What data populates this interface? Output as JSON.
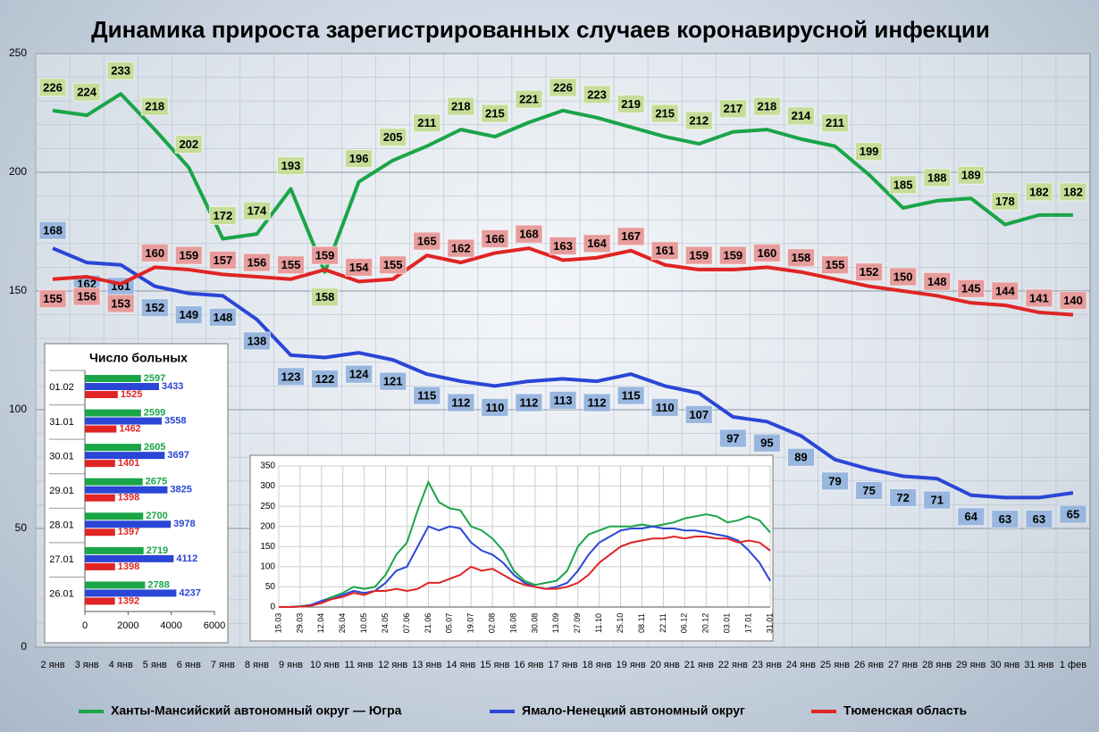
{
  "chart_data": [
    {
      "type": "line",
      "title": "Динамика прироста зарегистрированных случаев коронавирусной инфекции",
      "categories": [
        "2 янв",
        "3 янв",
        "4 янв",
        "5 янв",
        "6 янв",
        "7 янв",
        "8 янв",
        "9 янв",
        "10 янв",
        "11 янв",
        "12 янв",
        "13 янв",
        "14 янв",
        "15 янв",
        "16 янв",
        "17 янв",
        "18 янв",
        "19 янв",
        "20 янв",
        "21 янв",
        "22 янв",
        "23 янв",
        "24 янв",
        "25 янв",
        "26 янв",
        "27 янв",
        "28 янв",
        "29 янв",
        "30 янв",
        "31 янв",
        "1 фев"
      ],
      "ylim": [
        0,
        250
      ],
      "yticks": [
        0,
        50,
        100,
        150,
        200,
        250
      ],
      "grid": true,
      "series": [
        {
          "name": "Ханты-Мансийский автономный округ — Югра",
          "color": "#1aa548",
          "values": [
            226,
            224,
            233,
            218,
            202,
            172,
            174,
            193,
            158,
            196,
            205,
            211,
            218,
            215,
            221,
            226,
            223,
            219,
            215,
            212,
            217,
            218,
            214,
            211,
            199,
            185,
            188,
            189,
            178,
            182,
            182
          ]
        },
        {
          "name": "Ямало-Ненецкий автономный округ",
          "color": "#2a46d6",
          "values": [
            168,
            162,
            161,
            152,
            149,
            148,
            138,
            123,
            122,
            124,
            121,
            115,
            112,
            110,
            112,
            113,
            112,
            115,
            110,
            107,
            97,
            95,
            89,
            79,
            75,
            72,
            71,
            64,
            63,
            63,
            65
          ]
        },
        {
          "name": "Тюменская область",
          "color": "#e02424",
          "values": [
            155,
            156,
            153,
            160,
            159,
            157,
            156,
            155,
            159,
            154,
            155,
            165,
            162,
            166,
            168,
            163,
            164,
            167,
            161,
            159,
            159,
            160,
            158,
            155,
            152,
            150,
            148,
            145,
            144,
            141,
            140
          ]
        }
      ]
    },
    {
      "type": "hbar",
      "title": "Число больных",
      "categories": [
        "01.02",
        "31.01",
        "30.01",
        "29.01",
        "28.01",
        "27.01",
        "26.01"
      ],
      "xlim": [
        0,
        6000
      ],
      "xticks": [
        0,
        2000,
        4000,
        6000
      ],
      "series": [
        {
          "color": "#1aa548",
          "values": [
            2597,
            2599,
            2605,
            2675,
            2700,
            2719,
            2788
          ]
        },
        {
          "color": "#2a46d6",
          "values": [
            3433,
            3558,
            3697,
            3825,
            3978,
            4112,
            4237
          ]
        },
        {
          "color": "#e02424",
          "values": [
            1525,
            1462,
            1401,
            1398,
            1397,
            1398,
            1392
          ]
        }
      ]
    },
    {
      "type": "line",
      "categories": [
        "15.03",
        null,
        "29.03",
        null,
        "12.04",
        null,
        "26.04",
        null,
        "10.05",
        null,
        "24.05",
        null,
        "07.06",
        null,
        "21.06",
        null,
        "05.07",
        null,
        "19.07",
        null,
        "02.08",
        null,
        "16.08",
        null,
        "30.08",
        null,
        "13.09",
        null,
        "27.09",
        null,
        "11.10",
        null,
        "25.10",
        null,
        "08.11",
        null,
        "22.11",
        null,
        "06.12",
        null,
        "20.12",
        null,
        "03.01",
        null,
        "17.01",
        null,
        "31.01"
      ],
      "ylim": [
        0,
        350
      ],
      "yticks": [
        0,
        50,
        100,
        150,
        200,
        250,
        300,
        350
      ],
      "series": [
        {
          "color": "#1aa548",
          "values": [
            0,
            0,
            2,
            5,
            15,
            25,
            35,
            50,
            45,
            50,
            80,
            130,
            160,
            240,
            310,
            260,
            245,
            240,
            200,
            190,
            170,
            140,
            90,
            65,
            55,
            60,
            65,
            90,
            150,
            180,
            190,
            200,
            200,
            200,
            205,
            200,
            205,
            210,
            220,
            225,
            230,
            225,
            210,
            215,
            225,
            215,
            185
          ]
        },
        {
          "color": "#2a46d6",
          "values": [
            0,
            0,
            1,
            5,
            15,
            20,
            30,
            40,
            35,
            40,
            60,
            90,
            100,
            150,
            200,
            190,
            200,
            195,
            160,
            140,
            130,
            110,
            80,
            60,
            50,
            45,
            50,
            60,
            90,
            130,
            160,
            175,
            190,
            195,
            195,
            200,
            195,
            195,
            190,
            190,
            185,
            180,
            175,
            165,
            140,
            110,
            65
          ]
        },
        {
          "color": "#e02424",
          "values": [
            0,
            0,
            1,
            3,
            10,
            20,
            25,
            35,
            30,
            40,
            40,
            45,
            40,
            45,
            60,
            60,
            70,
            80,
            100,
            90,
            95,
            80,
            65,
            55,
            50,
            45,
            45,
            50,
            60,
            80,
            110,
            130,
            150,
            160,
            165,
            170,
            170,
            175,
            170,
            175,
            175,
            170,
            170,
            160,
            165,
            160,
            140
          ]
        }
      ]
    }
  ]
}
